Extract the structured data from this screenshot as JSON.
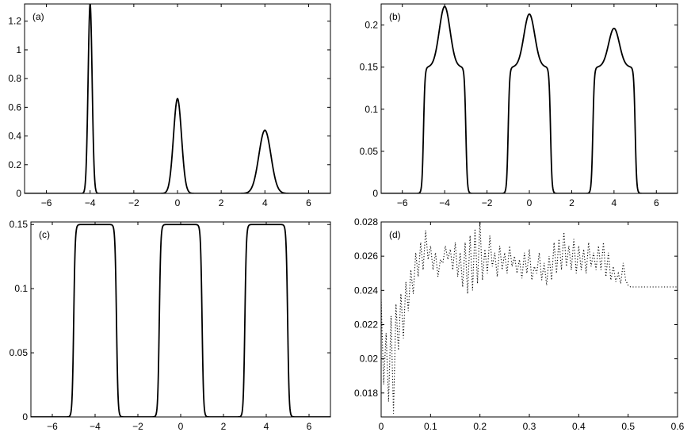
{
  "chart_data": [
    {
      "type": "line",
      "panel_label": "(a)",
      "xlim": [
        -7,
        7
      ],
      "ylim": [
        0,
        1.32
      ],
      "x_ticks": [
        -6,
        -4,
        -2,
        0,
        2,
        4,
        6
      ],
      "x_tick_labels": [
        "−6",
        "−4",
        "−2",
        "0",
        "2",
        "4",
        "6"
      ],
      "y_ticks": [
        0,
        0.2,
        0.4,
        0.6,
        0.8,
        1,
        1.2
      ],
      "y_tick_labels": [
        "0",
        "0.2",
        "0.4",
        "0.6",
        "0.8",
        "1",
        "1.2"
      ],
      "peaks": [
        {
          "center": -4,
          "height": 1.32,
          "width": 0.13
        },
        {
          "center": 0,
          "height": 0.66,
          "width": 0.26
        },
        {
          "center": 4,
          "height": 0.44,
          "width": 0.39
        }
      ],
      "line_styles": [
        "solid",
        "dotted"
      ]
    },
    {
      "type": "line",
      "panel_label": "(b)",
      "xlim": [
        -7,
        7
      ],
      "ylim": [
        0,
        0.225
      ],
      "x_ticks": [
        -6,
        -4,
        -2,
        0,
        2,
        4,
        6
      ],
      "x_tick_labels": [
        "−6",
        "−4",
        "−2",
        "0",
        "2",
        "4",
        "6"
      ],
      "y_ticks": [
        0,
        0.05,
        0.1,
        0.15,
        0.2
      ],
      "y_tick_labels": [
        "0",
        "0.05",
        "0.1",
        "0.15",
        "0.2"
      ],
      "plateau_level": 0.15,
      "pulses": [
        {
          "left": -5,
          "right": -3,
          "bump_center": -4,
          "bump_peak": 0.222
        },
        {
          "left": -1,
          "right": 1,
          "bump_center": 0,
          "bump_peak": 0.213
        },
        {
          "left": 3,
          "right": 5,
          "bump_center": 4,
          "bump_peak": 0.196
        }
      ],
      "line_styles": [
        "solid",
        "dotted"
      ]
    },
    {
      "type": "line",
      "panel_label": "(c)",
      "xlim": [
        -7,
        7
      ],
      "ylim": [
        0,
        0.152
      ],
      "x_ticks": [
        -6,
        -4,
        -2,
        0,
        2,
        4,
        6
      ],
      "x_tick_labels": [
        "−6",
        "−4",
        "−2",
        "0",
        "2",
        "4",
        "6"
      ],
      "y_ticks": [
        0,
        0.05,
        0.1,
        0.15
      ],
      "y_tick_labels": [
        "0",
        "0.05",
        "0.1",
        "0.15"
      ],
      "plateau_level": 0.15,
      "pulses": [
        {
          "left": -5,
          "right": -3
        },
        {
          "left": -1,
          "right": 1
        },
        {
          "left": 3,
          "right": 5
        }
      ],
      "line_styles": [
        "solid",
        "dotted"
      ]
    },
    {
      "type": "line",
      "panel_label": "(d)",
      "xlim": [
        0,
        0.6
      ],
      "ylim": [
        0.0166,
        0.028
      ],
      "x_ticks": [
        0,
        0.1,
        0.2,
        0.3,
        0.4,
        0.5,
        0.6
      ],
      "x_tick_labels": [
        "0",
        "0.1",
        "0.2",
        "0.3",
        "0.4",
        "0.5",
        "0.6"
      ],
      "y_ticks": [
        0.018,
        0.02,
        0.022,
        0.024,
        0.026,
        0.028
      ],
      "y_tick_labels": [
        "0.018",
        "0.02",
        "0.022",
        "0.024",
        "0.026",
        "0.028"
      ],
      "series": [
        {
          "line_style": "dotted",
          "x": [
            0,
            0.005,
            0.01,
            0.015,
            0.02,
            0.025,
            0.03,
            0.035,
            0.04,
            0.045,
            0.05,
            0.055,
            0.06,
            0.065,
            0.07,
            0.075,
            0.08,
            0.085,
            0.09,
            0.095,
            0.1,
            0.105,
            0.11,
            0.115,
            0.12,
            0.125,
            0.13,
            0.135,
            0.14,
            0.145,
            0.15,
            0.155,
            0.16,
            0.165,
            0.17,
            0.175,
            0.18,
            0.185,
            0.19,
            0.195,
            0.2,
            0.205,
            0.21,
            0.215,
            0.22,
            0.225,
            0.23,
            0.235,
            0.24,
            0.245,
            0.25,
            0.255,
            0.26,
            0.265,
            0.27,
            0.275,
            0.28,
            0.285,
            0.29,
            0.295,
            0.3,
            0.305,
            0.31,
            0.315,
            0.32,
            0.325,
            0.33,
            0.335,
            0.34,
            0.345,
            0.35,
            0.355,
            0.36,
            0.365,
            0.37,
            0.375,
            0.38,
            0.385,
            0.39,
            0.395,
            0.4,
            0.405,
            0.41,
            0.415,
            0.42,
            0.425,
            0.43,
            0.435,
            0.44,
            0.445,
            0.45,
            0.455,
            0.46,
            0.465,
            0.47,
            0.475,
            0.48,
            0.485,
            0.49,
            0.495,
            0.5,
            0.505,
            0.51,
            0.6
          ],
          "y": [
            0.0235,
            0.0185,
            0.0215,
            0.0175,
            0.0225,
            0.0168,
            0.0232,
            0.0205,
            0.0238,
            0.0212,
            0.0245,
            0.0228,
            0.0252,
            0.0238,
            0.0262,
            0.0248,
            0.0268,
            0.0252,
            0.0275,
            0.0258,
            0.0266,
            0.0252,
            0.0262,
            0.0248,
            0.0258,
            0.0256,
            0.0266,
            0.0258,
            0.0264,
            0.0252,
            0.0268,
            0.0248,
            0.0262,
            0.0242,
            0.0268,
            0.0238,
            0.0272,
            0.024,
            0.0276,
            0.0244,
            0.028,
            0.0246,
            0.0264,
            0.025,
            0.0272,
            0.0254,
            0.0262,
            0.0248,
            0.0266,
            0.0252,
            0.0262,
            0.025,
            0.0266,
            0.0254,
            0.026,
            0.025,
            0.0258,
            0.0247,
            0.0262,
            0.025,
            0.0264,
            0.0246,
            0.0254,
            0.025,
            0.0262,
            0.0246,
            0.0256,
            0.0243,
            0.026,
            0.0246,
            0.0268,
            0.025,
            0.027,
            0.0252,
            0.0274,
            0.0254,
            0.0266,
            0.0252,
            0.027,
            0.025,
            0.0266,
            0.0252,
            0.0264,
            0.025,
            0.0268,
            0.0254,
            0.0262,
            0.0252,
            0.0266,
            0.0252,
            0.0268,
            0.0248,
            0.0262,
            0.0246,
            0.0254,
            0.0245,
            0.025,
            0.0244,
            0.0256,
            0.0246,
            0.0243,
            0.0242,
            0.0242,
            0.0242
          ]
        }
      ]
    }
  ]
}
